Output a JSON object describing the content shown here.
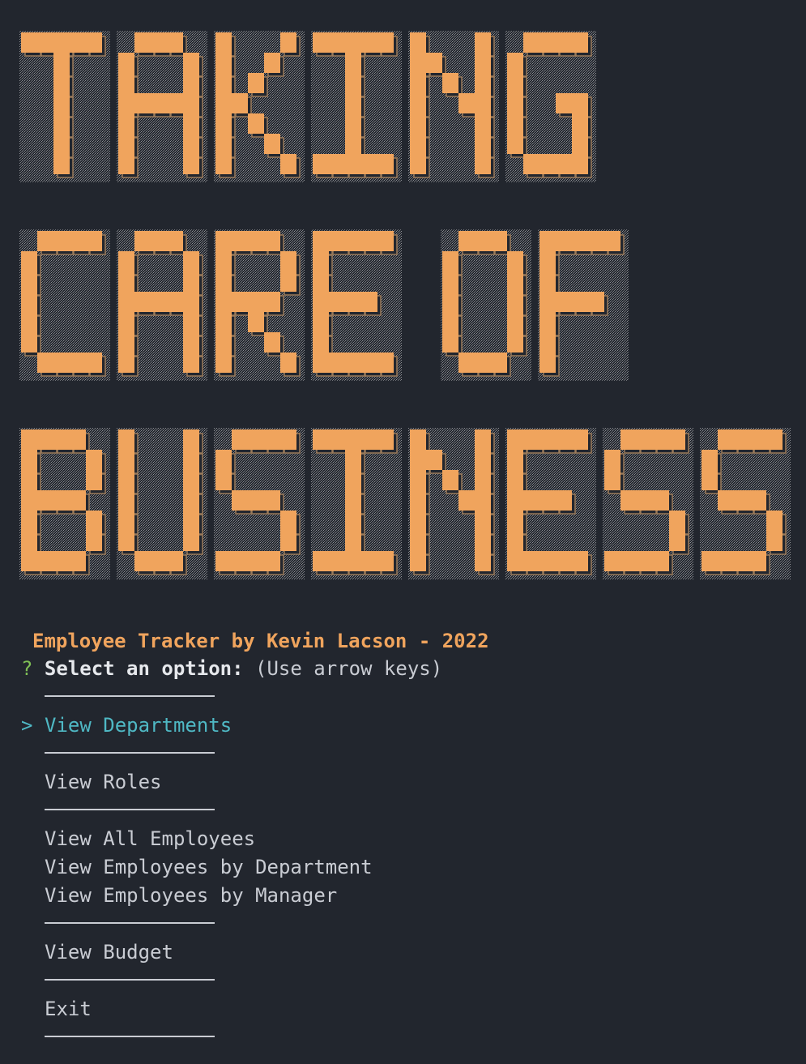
{
  "banner": {
    "lines": [
      "TAKING",
      "CARE OF",
      "BUSINESS"
    ],
    "fill_color": "#f0a45d",
    "shadow_color": "#9a7a5a"
  },
  "subtitle": {
    "text": "Employee Tracker by Kevin Lacson - 2022",
    "color": "#f0a45d"
  },
  "prompt": {
    "marker": "?",
    "question": "Select an option:",
    "hint": "(Use arrow keys)"
  },
  "menu": {
    "pointer": ">",
    "items": [
      {
        "label": "View Departments",
        "selected": true
      },
      {
        "label": "View Roles",
        "selected": false
      },
      {
        "label": "View All Employees",
        "selected": false
      },
      {
        "label": "View Employees by Department",
        "selected": false
      },
      {
        "label": "View Employees by Manager",
        "selected": false
      },
      {
        "label": "View Budget",
        "selected": false
      },
      {
        "label": "Exit",
        "selected": false
      }
    ]
  },
  "colors": {
    "background": "#22262e",
    "active": "#4fb8c4",
    "text": "#c9ccd3",
    "question_mark": "#7fbf55"
  }
}
